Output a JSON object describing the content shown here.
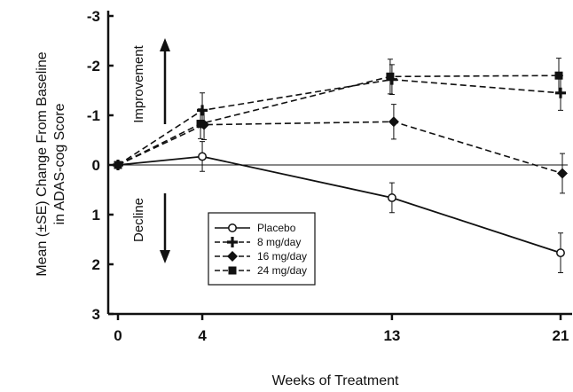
{
  "chart_data": {
    "type": "line",
    "xlabel": "Weeks of Treatment",
    "ylabel_lines": [
      "Mean (±SE) Change From Baseline",
      "in ADAS-cog Score"
    ],
    "x_ticks": [
      0,
      4,
      13,
      21
    ],
    "y_ticks": [
      -3,
      -2,
      -1,
      0,
      1,
      2,
      3
    ],
    "y_tick_labels": [
      "-3",
      "-2",
      "-1",
      "0",
      "1",
      "2",
      "3"
    ],
    "xlim": [
      0,
      21
    ],
    "ylim": [
      -3,
      3
    ],
    "y_inverted": true,
    "reference_line": 0,
    "annotations": {
      "up": "Improvement",
      "down": "Decline"
    },
    "legend_placement": "lower-center",
    "series": [
      {
        "name": "Placebo",
        "marker": "open-circle",
        "dash": "solid",
        "x": [
          0,
          4,
          13,
          21
        ],
        "y": [
          0.0,
          -0.17,
          0.66,
          1.77
        ],
        "se": [
          0.07,
          0.3,
          0.3,
          0.4
        ]
      },
      {
        "name": "8 mg/day",
        "marker": "plus",
        "dash": "dashed",
        "x": [
          0,
          4,
          13,
          21
        ],
        "y": [
          0.0,
          -1.1,
          -1.72,
          -1.45
        ],
        "se": [
          0.07,
          0.35,
          0.3,
          0.35
        ]
      },
      {
        "name": "16 mg/day",
        "marker": "diamond",
        "dash": "dashed",
        "x": [
          0,
          4,
          13,
          21
        ],
        "y": [
          0.0,
          -0.81,
          -0.87,
          0.17
        ],
        "se": [
          0.07,
          0.3,
          0.35,
          0.4
        ]
      },
      {
        "name": "24 mg/day",
        "marker": "square",
        "dash": "dashed",
        "x": [
          0,
          4,
          13,
          21
        ],
        "y": [
          0.0,
          -0.83,
          -1.78,
          -1.8
        ],
        "se": [
          0.07,
          0.3,
          0.35,
          0.35
        ]
      }
    ]
  }
}
